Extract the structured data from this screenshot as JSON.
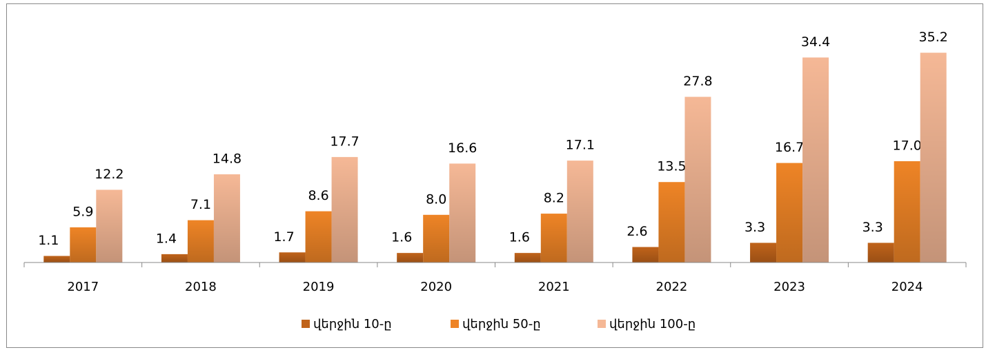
{
  "chart_data": {
    "type": "bar",
    "categories": [
      "2017",
      "2018",
      "2019",
      "2020",
      "2021",
      "2022",
      "2023",
      "2024"
    ],
    "series": [
      {
        "name": "վերջին 10-ը",
        "color": "#c0631a",
        "values": [
          1.1,
          1.4,
          1.7,
          1.6,
          1.6,
          2.6,
          3.3,
          3.3
        ],
        "value_labels": [
          "1.1",
          "1.4",
          "1.7",
          "1.6",
          "1.6",
          "2.6",
          "3.3",
          "3.3"
        ]
      },
      {
        "name": "վերջին 50-ը",
        "color": "#ee8426",
        "values": [
          5.9,
          7.1,
          8.6,
          8.0,
          8.2,
          13.5,
          16.7,
          17.0
        ],
        "value_labels": [
          "5.9",
          "7.1",
          "8.6",
          "8.0",
          "8.2",
          "13.5",
          "16.7",
          "17.0"
        ]
      },
      {
        "name": "վերջին 100-ը",
        "color": "#f5b896",
        "values": [
          12.2,
          14.8,
          17.7,
          16.6,
          17.1,
          27.8,
          34.4,
          35.2
        ],
        "value_labels": [
          "12.2",
          "14.8",
          "17.7",
          "16.6",
          "17.1",
          "27.8",
          "34.4",
          "35.2"
        ]
      }
    ],
    "ylim": [
      0,
      40
    ],
    "legend": "bottom"
  }
}
